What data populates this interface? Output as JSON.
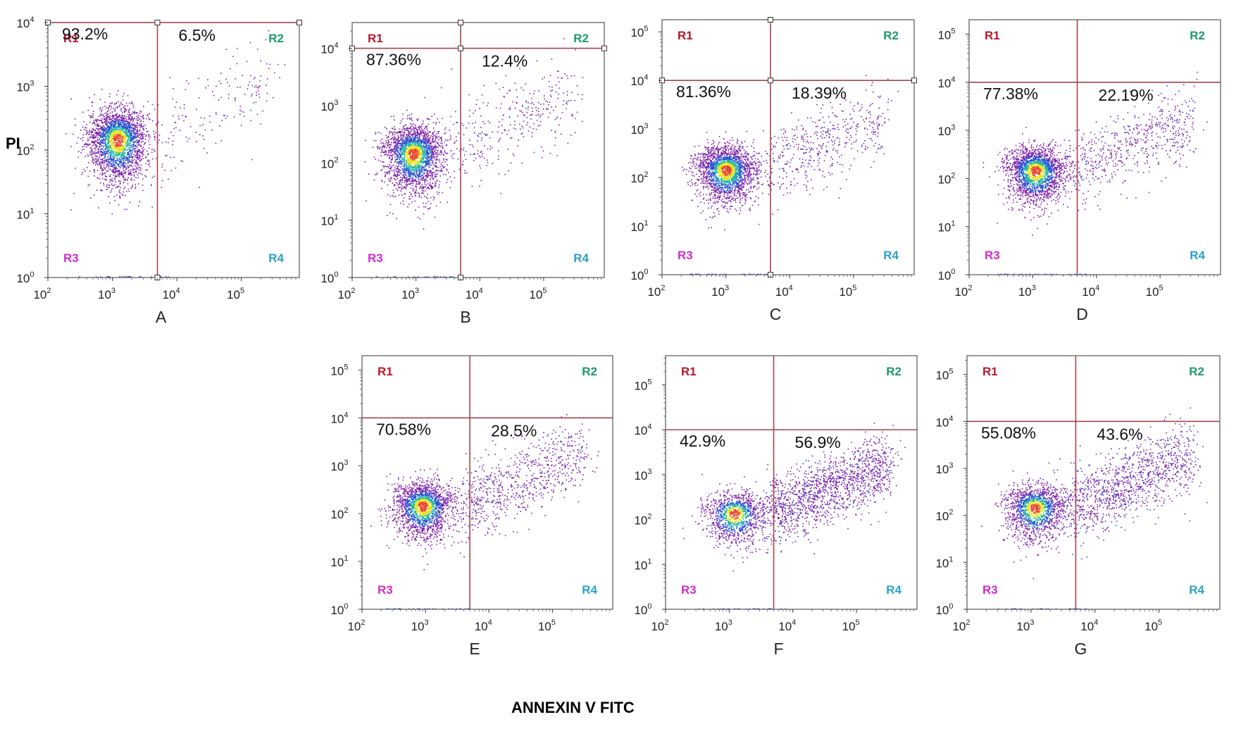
{
  "figure": {
    "y_axis_title": "PI",
    "x_axis_title": "ANNEXIN V FITC"
  },
  "colors": {
    "quad_line": "#a5454d",
    "frame": "#555555",
    "R1": "#b5162b",
    "R2": "#1d9a68",
    "R3": "#cf2bc9",
    "R4": "#2aa1c7",
    "density_low": "#7b1fa8",
    "density_mid": "#2a4fd0",
    "density_midhigh": "#1fb5a8",
    "density_high": "#e6e01a",
    "density_peak": "#e8432a"
  },
  "chart_data": [
    {
      "type": "scatter",
      "panel": "A",
      "xlabel": "A",
      "log_x": true,
      "log_y": true,
      "x_ticks": [
        "2",
        "3",
        "4",
        "5"
      ],
      "y_ticks": [
        "0",
        "1",
        "2",
        "3",
        "4"
      ],
      "xlim_exp": [
        2,
        5.9
      ],
      "ylim_exp": [
        0,
        4.0
      ],
      "gate_x": 5000,
      "gate_y": 10000,
      "handles": true,
      "regions": [
        "R1",
        "R2",
        "R3",
        "R4"
      ],
      "quadrant_percent": {
        "R1": "93.2%",
        "R2": "6.5%"
      },
      "population_center": [
        1200,
        150
      ]
    },
    {
      "type": "scatter",
      "panel": "B",
      "xlabel": "B",
      "log_x": true,
      "log_y": true,
      "x_ticks": [
        "2",
        "3",
        "4",
        "5"
      ],
      "y_ticks": [
        "0",
        "1",
        "2",
        "3",
        "4"
      ],
      "xlim_exp": [
        2,
        5.95
      ],
      "ylim_exp": [
        0,
        4.45
      ],
      "gate_x": 5000,
      "gate_y": 10000,
      "handles": true,
      "regions": [
        "R1",
        "R2",
        "R3",
        "R4"
      ],
      "quadrant_percent": {
        "R1": "87.36%",
        "R2": "12.4%"
      },
      "population_center": [
        900,
        150
      ]
    },
    {
      "type": "scatter",
      "panel": "C",
      "xlabel": "C",
      "log_x": true,
      "log_y": true,
      "x_ticks": [
        "2",
        "3",
        "4",
        "5"
      ],
      "y_ticks": [
        "0",
        "1",
        "2",
        "3",
        "4",
        "5"
      ],
      "xlim_exp": [
        2,
        5.95
      ],
      "ylim_exp": [
        0,
        5.25
      ],
      "gate_x": 5000,
      "gate_y": 10000,
      "handles": true,
      "regions": [
        "R1",
        "R2",
        "R3",
        "R4"
      ],
      "quadrant_percent": {
        "R1": "81.36%",
        "R2": "18.39%"
      },
      "population_center": [
        1000,
        150
      ]
    },
    {
      "type": "scatter",
      "panel": "D",
      "xlabel": "D",
      "log_x": true,
      "log_y": true,
      "x_ticks": [
        "2",
        "3",
        "4",
        "5"
      ],
      "y_ticks": [
        "0",
        "1",
        "2",
        "3",
        "4",
        "5"
      ],
      "xlim_exp": [
        2,
        5.95
      ],
      "ylim_exp": [
        0,
        5.3
      ],
      "gate_x": 5000,
      "gate_y": 10000,
      "handles": false,
      "regions": [
        "R1",
        "R2",
        "R3",
        "R4"
      ],
      "quadrant_percent": {
        "R1": "77.38%",
        "R2": "22.19%"
      },
      "population_center": [
        1100,
        150
      ]
    },
    {
      "type": "scatter",
      "panel": "E",
      "xlabel": "E",
      "log_x": true,
      "log_y": true,
      "x_ticks": [
        "2",
        "3",
        "4",
        "5"
      ],
      "y_ticks": [
        "0",
        "1",
        "2",
        "3",
        "4",
        "5"
      ],
      "xlim_exp": [
        2,
        5.95
      ],
      "ylim_exp": [
        0,
        5.3
      ],
      "gate_x": 5000,
      "gate_y": 10000,
      "handles": false,
      "regions": [
        "R1",
        "R2",
        "R3",
        "R4"
      ],
      "quadrant_percent": {
        "R1": "70.58%",
        "R2": "28.5%"
      },
      "population_center": [
        900,
        150
      ]
    },
    {
      "type": "scatter",
      "panel": "F",
      "xlabel": "F",
      "log_x": true,
      "log_y": true,
      "x_ticks": [
        "2",
        "3",
        "4",
        "5"
      ],
      "y_ticks": [
        "0",
        "1",
        "2",
        "3",
        "4",
        "5"
      ],
      "xlim_exp": [
        2,
        5.95
      ],
      "ylim_exp": [
        0,
        5.65
      ],
      "gate_x": 5000,
      "gate_y": 10000,
      "handles": false,
      "regions": [
        "R1",
        "R2",
        "R3",
        "R4"
      ],
      "quadrant_percent": {
        "R1": "42.9%",
        "R2": "56.9%"
      },
      "population_center": [
        1200,
        140
      ]
    },
    {
      "type": "scatter",
      "panel": "G",
      "xlabel": "G",
      "log_x": true,
      "log_y": true,
      "x_ticks": [
        "2",
        "3",
        "4",
        "5"
      ],
      "y_ticks": [
        "0",
        "1",
        "2",
        "3",
        "4",
        "5"
      ],
      "xlim_exp": [
        2,
        5.95
      ],
      "ylim_exp": [
        0,
        5.4
      ],
      "gate_x": 5000,
      "gate_y": 10000,
      "handles": false,
      "regions": [
        "R1",
        "R2",
        "R3",
        "R4"
      ],
      "quadrant_percent": {
        "R1": "55.08%",
        "R2": "43.6%"
      },
      "population_center": [
        1150,
        150
      ]
    }
  ]
}
